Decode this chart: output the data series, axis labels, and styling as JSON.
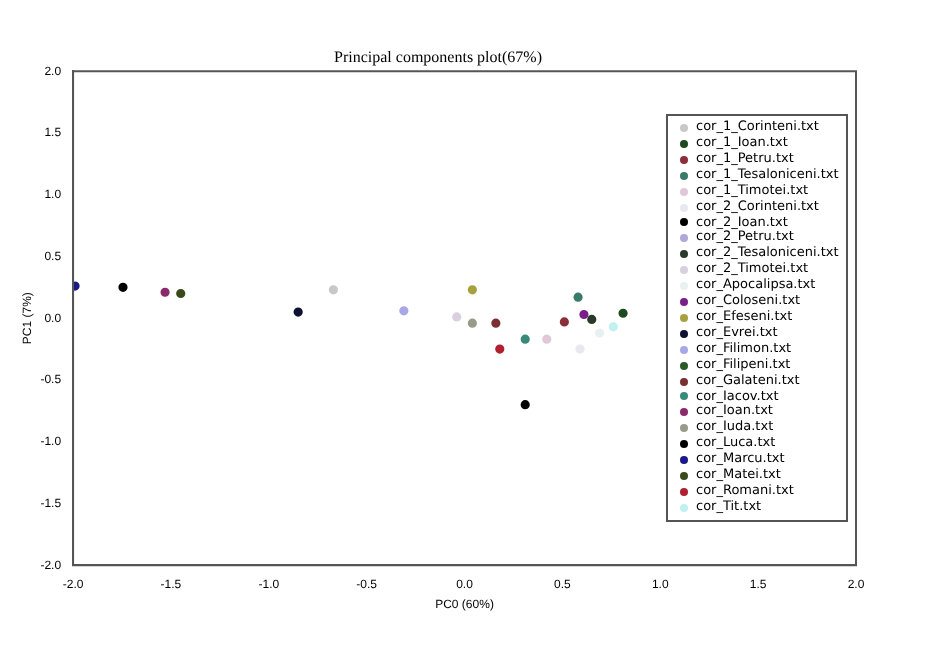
{
  "chart_data": {
    "type": "scatter",
    "title": "Principal components plot(67%)",
    "xlabel": "PC0 (60%)",
    "ylabel": "PC1 (7%)",
    "xlim": [
      -2,
      2
    ],
    "ylim": [
      -2,
      2
    ],
    "xticks": [
      {
        "value": -2,
        "label": "-2.0"
      },
      {
        "value": -1.5,
        "label": "-1.5"
      },
      {
        "value": -1,
        "label": "-1.0"
      },
      {
        "value": -0.5,
        "label": "-0.5"
      },
      {
        "value": 0,
        "label": "0.0"
      },
      {
        "value": 0.5,
        "label": "0.5"
      },
      {
        "value": 1,
        "label": "1.0"
      },
      {
        "value": 1.5,
        "label": "1.5"
      },
      {
        "value": 2,
        "label": "2.0"
      }
    ],
    "yticks": [
      {
        "value": -2,
        "label": "-2.0"
      },
      {
        "value": -1.5,
        "label": "-1.5"
      },
      {
        "value": -1,
        "label": "-1.0"
      },
      {
        "value": -0.5,
        "label": "-0.5"
      },
      {
        "value": 0,
        "label": "0.0"
      },
      {
        "value": 0.5,
        "label": "0.5"
      },
      {
        "value": 1,
        "label": "1.0"
      },
      {
        "value": 1.5,
        "label": "1.5"
      },
      {
        "value": 2,
        "label": "2.0"
      }
    ],
    "grid": false,
    "legend": "right",
    "marker": "circle",
    "series": [
      {
        "name": "cor_1_Corinteni.txt",
        "color": "#c8c8c8",
        "x": [
          -0.67
        ],
        "values": [
          0.23
        ]
      },
      {
        "name": "cor_1_Ioan.txt",
        "color": "#1f4a1f",
        "x": [
          0.81
        ],
        "values": [
          0.04
        ]
      },
      {
        "name": "cor_1_Petru.txt",
        "color": "#8b2d3a",
        "x": [
          0.51
        ],
        "values": [
          -0.03
        ]
      },
      {
        "name": "cor_1_Tesaloniceni.txt",
        "color": "#3a7a6a",
        "x": [
          0.58
        ],
        "values": [
          0.17
        ]
      },
      {
        "name": "cor_1_Timotei.txt",
        "color": "#e0c8d8",
        "x": [
          0.42
        ],
        "values": [
          -0.17
        ]
      },
      {
        "name": "cor_2_Corinteni.txt",
        "color": "#e8e8f0",
        "x": [
          0.59
        ],
        "values": [
          -0.25
        ]
      },
      {
        "name": "cor_2_Ioan.txt",
        "color": "#000000",
        "x": [
          0.31
        ],
        "values": [
          -0.7
        ]
      },
      {
        "name": "cor_2_Petru.txt",
        "color": "#b0a8d8",
        "x": [
          null
        ],
        "values": [
          null
        ]
      },
      {
        "name": "cor_2_Tesaloniceni.txt",
        "color": "#2a3a2a",
        "x": [
          0.65
        ],
        "values": [
          -0.01
        ]
      },
      {
        "name": "cor_2_Timotei.txt",
        "color": "#d8d0e0",
        "x": [
          -0.04
        ],
        "values": [
          0.01
        ]
      },
      {
        "name": "cor_Apocalipsa.txt",
        "color": "#e8f0f0",
        "x": [
          0.69
        ],
        "values": [
          -0.12
        ]
      },
      {
        "name": "cor_Coloseni.txt",
        "color": "#7a1f8a",
        "x": [
          0.61
        ],
        "values": [
          0.03
        ]
      },
      {
        "name": "cor_Efeseni.txt",
        "color": "#a8a040",
        "x": [
          0.04
        ],
        "values": [
          0.23
        ]
      },
      {
        "name": "cor_Evrei.txt",
        "color": "#101030",
        "x": [
          -0.85
        ],
        "values": [
          0.05
        ]
      },
      {
        "name": "cor_Filimon.txt",
        "color": "#a8a8e8",
        "x": [
          -0.31
        ],
        "values": [
          0.06
        ]
      },
      {
        "name": "cor_Filipeni.txt",
        "color": "#2a5a2a",
        "x": [
          null
        ],
        "values": [
          null
        ]
      },
      {
        "name": "cor_Galateni.txt",
        "color": "#7a3030",
        "x": [
          0.16
        ],
        "values": [
          -0.04
        ]
      },
      {
        "name": "cor_Iacov.txt",
        "color": "#3a8a7a",
        "x": [
          0.31
        ],
        "values": [
          -0.17
        ]
      },
      {
        "name": "cor_Ioan.txt",
        "color": "#8a2a6a",
        "x": [
          -1.53
        ],
        "values": [
          0.21
        ]
      },
      {
        "name": "cor_Iuda.txt",
        "color": "#9a9a8a",
        "x": [
          0.04
        ],
        "values": [
          -0.04
        ]
      },
      {
        "name": "cor_Luca.txt",
        "color": "#000000",
        "x": [
          -1.745
        ],
        "values": [
          0.25
        ]
      },
      {
        "name": "cor_Marcu.txt",
        "color": "#1a1a8a",
        "x": [
          -1.99
        ],
        "values": [
          0.26
        ]
      },
      {
        "name": "cor_Matei.txt",
        "color": "#3a4a1a",
        "x": [
          -1.45
        ],
        "values": [
          0.2
        ]
      },
      {
        "name": "cor_Romani.txt",
        "color": "#b02030",
        "x": [
          0.18
        ],
        "values": [
          -0.25
        ]
      },
      {
        "name": "cor_Tit.txt",
        "color": "#c0f0f0",
        "x": [
          0.76
        ],
        "values": [
          -0.07
        ]
      }
    ]
  }
}
